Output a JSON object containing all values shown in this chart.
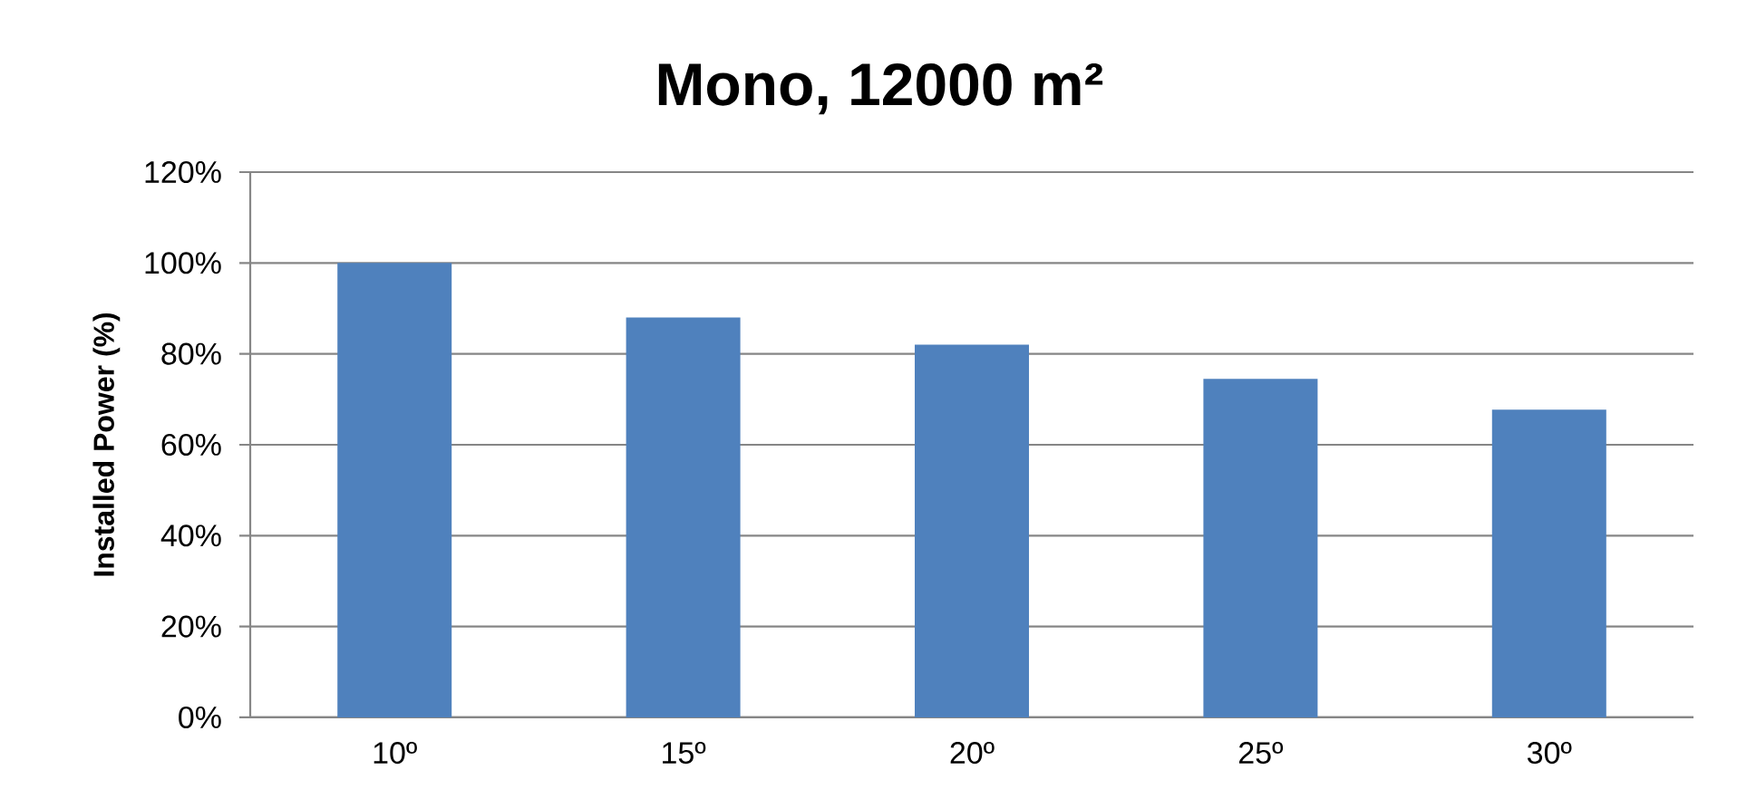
{
  "chart_data": {
    "type": "bar",
    "title": "Mono, 12000 m²",
    "ylabel": "Installed Power (%)",
    "categories": [
      "10º",
      "15º",
      "20º",
      "25º",
      "30º"
    ],
    "values": [
      100,
      88,
      82,
      74.5,
      67.7
    ],
    "color": "#4f81bd",
    "ylim": [
      0,
      120
    ],
    "yticks": [
      {
        "value": 0,
        "label": "0%"
      },
      {
        "value": 20,
        "label": "20%"
      },
      {
        "value": 40,
        "label": "40%"
      },
      {
        "value": 60,
        "label": "60%"
      },
      {
        "value": 80,
        "label": "80%"
      },
      {
        "value": 100,
        "label": "100%"
      },
      {
        "value": 120,
        "label": "120%"
      }
    ],
    "grid": "y"
  }
}
